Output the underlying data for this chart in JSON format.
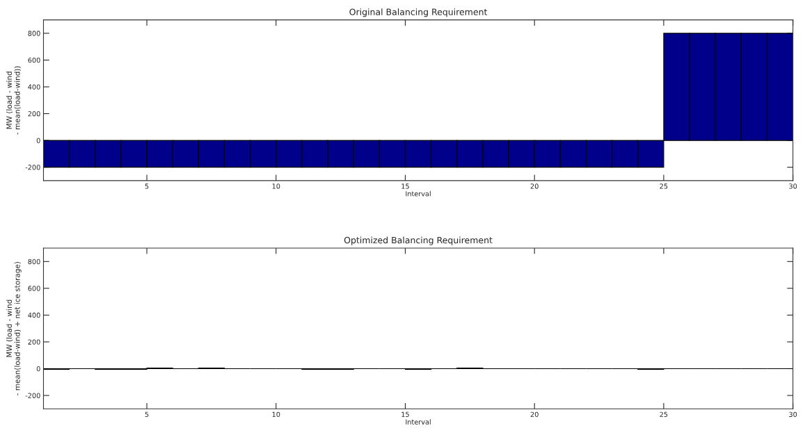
{
  "chart_data": [
    {
      "type": "histogram",
      "title": "Original Balancing Requirement",
      "xlabel": "Interval",
      "ylabel": "MW (load - wind\n- mean(load-wind))",
      "color": "#00008b",
      "bins": [
        1,
        2,
        3,
        4,
        5,
        6,
        7,
        8,
        9,
        10,
        11,
        12,
        13,
        14,
        15,
        16,
        17,
        18,
        19,
        20,
        21,
        22,
        23,
        24,
        25,
        26,
        27,
        28,
        29,
        30
      ],
      "values": [
        -200,
        -200,
        -200,
        -200,
        -200,
        -200,
        -200,
        -200,
        -200,
        -200,
        -200,
        -200,
        -200,
        -200,
        -200,
        -200,
        -200,
        -200,
        -200,
        -200,
        -200,
        -200,
        -200,
        -200,
        800,
        800,
        800,
        800,
        800
      ],
      "xlim": [
        1,
        30
      ],
      "xticks": [
        5,
        10,
        15,
        20,
        25,
        30
      ],
      "ylim": [
        -300,
        900
      ],
      "yticks": [
        -200,
        0,
        200,
        400,
        600,
        800
      ],
      "grid": false
    },
    {
      "type": "histogram",
      "title": "Optimized Balancing Requirement",
      "xlabel": "Interval",
      "ylabel": "MW (load - wind\n- mean(load-wind) + net ice storage)",
      "color": "#000000",
      "bins": [
        1,
        2,
        3,
        4,
        5,
        6,
        7,
        8,
        9,
        10,
        11,
        12,
        13,
        14,
        15,
        16,
        17,
        18,
        19,
        20,
        21,
        22,
        23,
        24,
        25,
        26,
        27,
        28,
        29,
        30
      ],
      "values": [
        -5,
        0,
        -5,
        -5,
        5,
        0,
        5,
        0,
        0,
        0,
        -5,
        -5,
        0,
        0,
        -5,
        0,
        5,
        0,
        0,
        0,
        0,
        0,
        0,
        -5,
        0,
        0,
        0,
        0,
        0
      ],
      "xlim": [
        1,
        30
      ],
      "xticks": [
        5,
        10,
        15,
        20,
        25,
        30
      ],
      "ylim": [
        -300,
        900
      ],
      "yticks": [
        -200,
        0,
        200,
        400,
        600,
        800
      ],
      "grid": false
    }
  ]
}
